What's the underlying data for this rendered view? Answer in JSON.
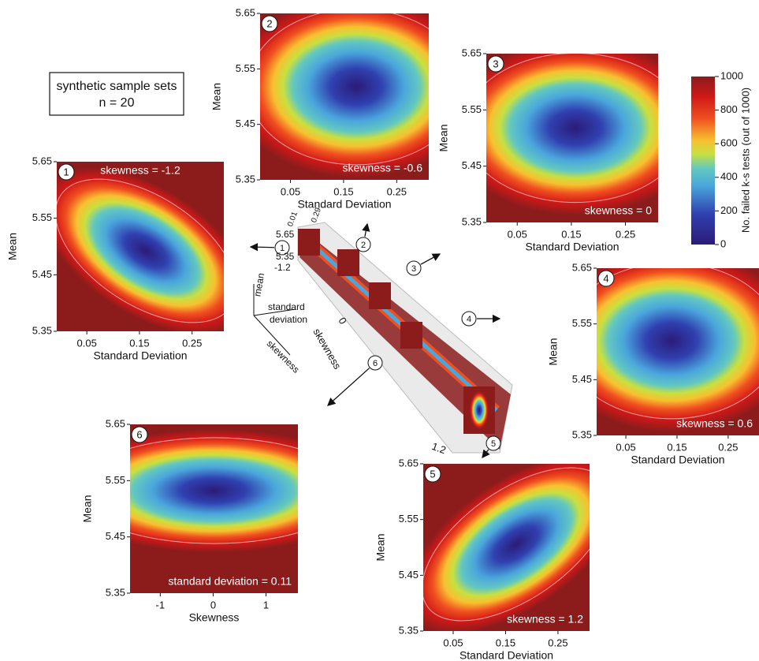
{
  "legend_box": {
    "line1": "synthetic sample sets",
    "line2": "n = 20"
  },
  "colorbar": {
    "label": "No. failed k-s tests (out of 1000)",
    "ticks": [
      1000,
      800,
      600,
      400,
      200,
      0
    ]
  },
  "panels": [
    {
      "badge": "1",
      "annotation": "skewness = -1.2",
      "ylabel": "Mean",
      "xlabel": "Standard Deviation",
      "yticks": [
        5.65,
        5.55,
        5.45,
        5.35
      ],
      "xticks": [
        0.05,
        0.15,
        0.25
      ]
    },
    {
      "badge": "2",
      "annotation": "skewness = -0.6",
      "ylabel": "Mean",
      "xlabel": "Standard Deviation",
      "yticks": [
        5.65,
        5.55,
        5.45,
        5.35
      ],
      "xticks": [
        0.05,
        0.15,
        0.25
      ]
    },
    {
      "badge": "3",
      "annotation": "skewness = 0",
      "ylabel": "Mean",
      "xlabel": "Standard Deviation",
      "yticks": [
        5.65,
        5.55,
        5.45,
        5.35
      ],
      "xticks": [
        0.05,
        0.15,
        0.25
      ]
    },
    {
      "badge": "4",
      "annotation": "skewness = 0.6",
      "ylabel": "Mean",
      "xlabel": "Standard Deviation",
      "yticks": [
        5.65,
        5.55,
        5.45,
        5.35
      ],
      "xticks": [
        0.05,
        0.15,
        0.25
      ]
    },
    {
      "badge": "5",
      "annotation": "skewness = 1.2",
      "ylabel": "Mean",
      "xlabel": "Standard Deviation",
      "yticks": [
        5.65,
        5.55,
        5.45,
        5.35
      ],
      "xticks": [
        0.05,
        0.15,
        0.25
      ]
    },
    {
      "badge": "6",
      "annotation": "standard deviation = 0.11",
      "ylabel": "Mean",
      "xlabel": "Skewness",
      "yticks": [
        5.65,
        5.55,
        5.45,
        5.35
      ],
      "xticks": [
        -1,
        0,
        1
      ]
    }
  ],
  "center": {
    "badges": [
      "1",
      "2",
      "3",
      "4",
      "5",
      "6"
    ],
    "axis_labels": [
      "mean",
      "standard",
      "deviation",
      "skewness"
    ],
    "tick_labels": [
      "0.01",
      "0.29",
      "5.65",
      "5.35",
      "-1.2",
      "0",
      "skewness",
      "1.2"
    ]
  }
}
